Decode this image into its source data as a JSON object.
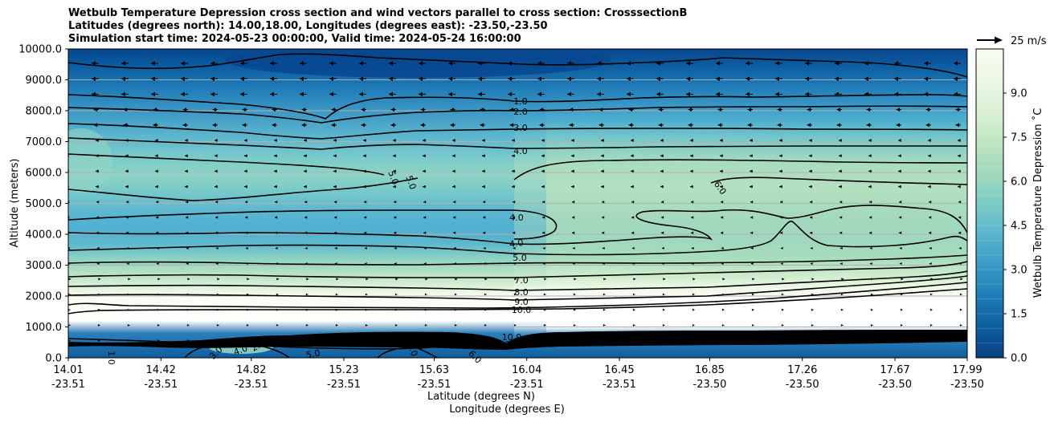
{
  "chart_data": {
    "type": "filled-contour",
    "title_lines": [
      "Wetbulb Temperature Depression cross section and wind vectors parallel to cross section: CrosssectionB",
      "Latitudes (degrees north): 14.00,18.00, Longitudes (degrees east): -23.50,-23.50",
      "Simulation start time: 2024-05-23 00:00:00, Valid time: 2024-05-24 16:00:00"
    ],
    "ylabel": "Altitude (meters)",
    "xlabel_lat": "Latitude (degrees N)",
    "xlabel_lon": "Longitude (degrees E)",
    "ylim": [
      0,
      10000
    ],
    "y_ticks": [
      "0.0",
      "1000.0",
      "2000.0",
      "3000.0",
      "4000.0",
      "5000.0",
      "6000.0",
      "7000.0",
      "8000.0",
      "9000.0",
      "10000.0"
    ],
    "x_tick_lat": [
      "14.01",
      "14.42",
      "14.82",
      "15.23",
      "15.63",
      "16.04",
      "16.45",
      "16.85",
      "17.26",
      "17.67",
      "17.99"
    ],
    "x_tick_lon": [
      "-23.51",
      "-23.51",
      "-23.51",
      "-23.51",
      "-23.51",
      "-23.51",
      "-23.51",
      "-23.50",
      "-23.50",
      "-23.50",
      "-23.50"
    ],
    "colorbar_label": "Wetbulb Temperature Depression ˚C",
    "colorbar_range": [
      0,
      10.5
    ],
    "colorbar_ticks": [
      "0.0",
      "1.5",
      "3.0",
      "4.5",
      "6.0",
      "7.5",
      "9.0"
    ],
    "wind_key": "25 m/s",
    "contour_labels": [
      "1.0",
      "2.0",
      "3.0",
      "4.0",
      "5.0",
      "5.0",
      "6.0",
      "4.0",
      "4.0",
      "5.0",
      "7.0",
      "8.0",
      "9.0",
      "10.0",
      "10.0",
      "9.0",
      "6.0",
      "4.0",
      "5.0",
      "4.0",
      "3.0",
      "2.0",
      "1.0"
    ],
    "depression_profile": {
      "altitude_m": [
        0,
        500,
        1000,
        1500,
        2000,
        2500,
        3000,
        3500,
        4000,
        4500,
        5000,
        5500,
        6000,
        6500,
        7000,
        7500,
        8000,
        8500,
        9000,
        9500,
        10000
      ],
      "west_c": [
        1.5,
        3.0,
        11.0,
        10.5,
        8.0,
        7.0,
        6.0,
        5.0,
        4.0,
        4.0,
        4.5,
        5.5,
        6.5,
        5.5,
        4.5,
        3.0,
        2.0,
        1.0,
        0.5,
        0.3,
        0.3
      ],
      "east_c": [
        1.5,
        5.0,
        11.0,
        11.0,
        9.5,
        8.0,
        7.5,
        7.0,
        7.0,
        7.0,
        7.0,
        7.0,
        6.5,
        5.0,
        3.5,
        2.5,
        1.5,
        1.0,
        0.5,
        0.3,
        0.3
      ]
    }
  }
}
